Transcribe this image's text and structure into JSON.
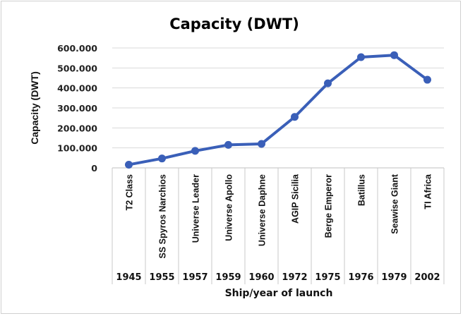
{
  "chart_data": {
    "type": "line",
    "title": "Capacity (DWT)",
    "ylabel": "Capacity (DWT)",
    "xlabel": "Ship/year of launch",
    "ylim": [
      0,
      600000
    ],
    "yticks": [
      0,
      100000,
      200000,
      300000,
      400000,
      500000,
      600000
    ],
    "ytick_labels": [
      "0",
      "100.000",
      "200.000",
      "300.000",
      "400.000",
      "500.000",
      "600.000"
    ],
    "categories": [
      "T2 Class",
      "SS Spyros Narchios",
      "Universe Leader",
      "Universe Apollo",
      "Universe Daphne",
      "AGIP Sicilia",
      "Berge Emperor",
      "Batillus",
      "Seawise Giant",
      "TI Africa"
    ],
    "years": [
      "1945",
      "1955",
      "1957",
      "1959",
      "1960",
      "1972",
      "1975",
      "1976",
      "1979",
      "2002"
    ],
    "series": [
      {
        "values": [
          16000,
          47000,
          85000,
          115000,
          120000,
          255000,
          423000,
          554000,
          564000,
          441000
        ]
      }
    ],
    "grid": true,
    "line_color": "#3a5fb8"
  }
}
